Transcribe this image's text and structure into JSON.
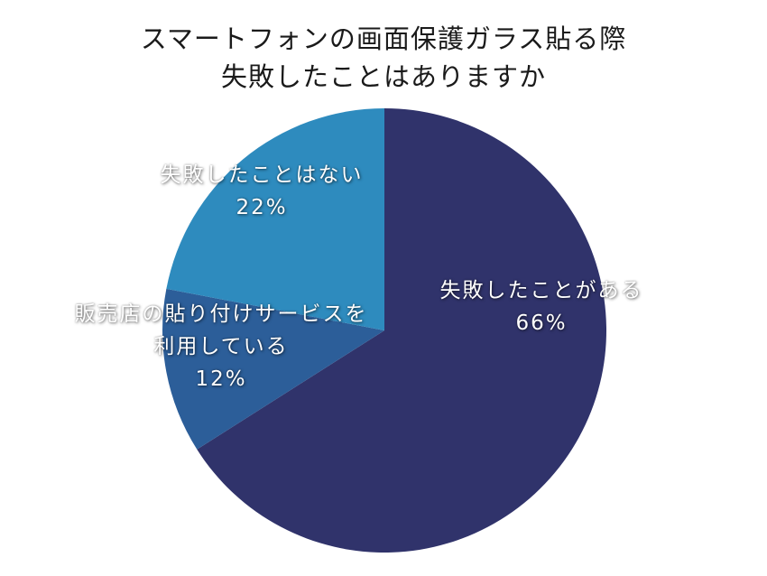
{
  "title": {
    "line1": "スマートフォンの画面保護ガラス貼る際",
    "line2": "失敗したことはありますか"
  },
  "slices": [
    {
      "label": "失敗したことがある",
      "label_lines": [
        "失敗したことがある"
      ],
      "percent_text": "66%",
      "value": 66,
      "color": "#30336B"
    },
    {
      "label": "販売店の貼り付けサービスを利用している",
      "label_lines": [
        "販売店の貼り付けサービスを",
        "利用している"
      ],
      "percent_text": "12%",
      "value": 12,
      "color": "#2C5E99"
    },
    {
      "label": "失敗したことはない",
      "label_lines": [
        "失敗したことはない"
      ],
      "percent_text": "22%",
      "value": 22,
      "color": "#2E8BBE"
    }
  ],
  "chart_data": {
    "type": "pie",
    "title": "スマートフォンの画面保護ガラス貼る際 失敗したことはありますか",
    "categories": [
      "失敗したことがある",
      "販売店の貼り付けサービスを利用している",
      "失敗したことはない"
    ],
    "values": [
      66,
      12,
      22
    ],
    "unit": "%",
    "colors": [
      "#30336B",
      "#2C5E99",
      "#2E8BBE"
    ],
    "start_angle": "12 o'clock",
    "direction": "clockwise",
    "legend": "none (labels drawn on slices)",
    "grid": false
  }
}
